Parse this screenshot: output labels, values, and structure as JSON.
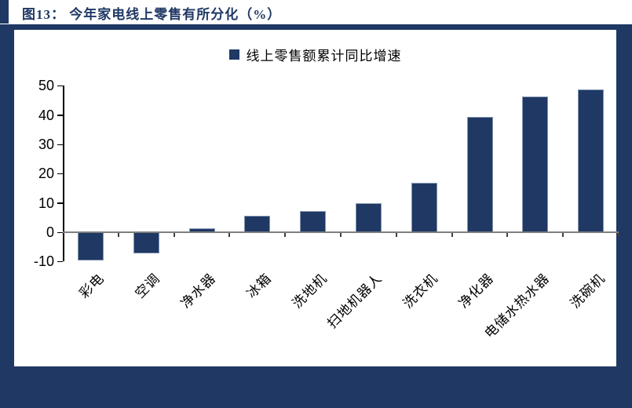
{
  "title": "图13：  今年家电线上零售有所分化（%）",
  "legend": {
    "label": "线上零售额累计同比增速"
  },
  "colors": {
    "navy": "#1F3864",
    "bar": "#1F3864",
    "bar_border": "#8496B0",
    "zero_line": "#7F7F7F",
    "axis": "#000000",
    "text": "#000000",
    "background": "#FFFFFF"
  },
  "chart_data": {
    "type": "bar",
    "title": "图13：今年家电线上零售有所分化（%）",
    "legend_entries": [
      "线上零售额累计同比增速"
    ],
    "legend_position": "top-center",
    "categories": [
      "彩电",
      "空调",
      "净水器",
      "冰箱",
      "洗地机",
      "扫地机器人",
      "洗衣机",
      "净化器",
      "电储水热水器",
      "洗碗机"
    ],
    "series": [
      {
        "name": "线上零售额累计同比增速",
        "values": [
          -9.6,
          -7.2,
          1.4,
          5.6,
          7.2,
          9.8,
          17.0,
          39.3,
          46.4,
          48.7
        ]
      }
    ],
    "unit": "%",
    "ylabel": "",
    "xlabel": "",
    "ylim": [
      -10,
      50
    ],
    "yticks": [
      50,
      40,
      30,
      20,
      10,
      0,
      -10
    ],
    "grid": false,
    "x_label_rotation_deg": 45
  }
}
